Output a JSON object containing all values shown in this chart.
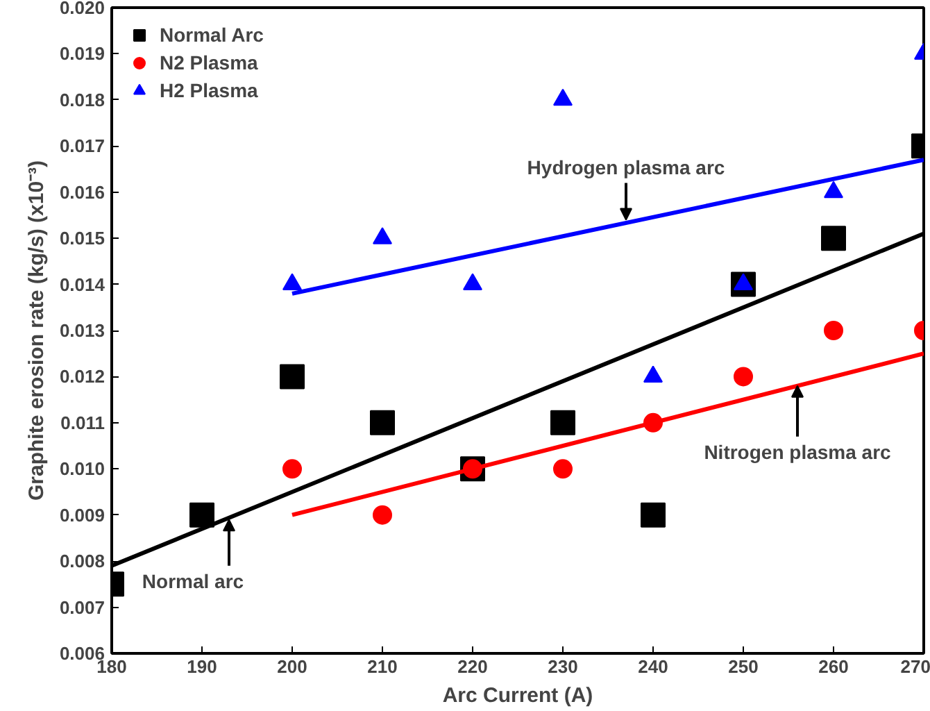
{
  "chart_data": {
    "type": "scatter",
    "xlabel": "Arc Current (A)",
    "ylabel": "Graphite erosion rate (kg/s) (x10⁻³)",
    "xlim": [
      180,
      270
    ],
    "xticks": [
      180,
      190,
      200,
      210,
      220,
      230,
      240,
      250,
      260,
      270
    ],
    "ylim": [
      0.006,
      0.02
    ],
    "yticks": [
      0.006,
      0.007,
      0.008,
      0.009,
      {
        "value": 0.01,
        "label": "0.010"
      },
      0.011,
      0.012,
      0.013,
      0.014,
      0.015,
      0.016,
      0.017,
      0.018,
      0.019,
      {
        "value": 0.02,
        "label": "0.020"
      }
    ],
    "grid": false,
    "legend": "top left",
    "series": [
      {
        "name": "Normal Arc",
        "color": "#000000",
        "marker": "square",
        "x": [
          180,
          190,
          200,
          210,
          220,
          230,
          240,
          250,
          260,
          270
        ],
        "values": [
          0.0075,
          0.009,
          0.012,
          0.011,
          0.01,
          0.011,
          0.009,
          0.014,
          0.015,
          0.017
        ]
      },
      {
        "name": "N2 Plasma",
        "color": "#ff0000",
        "marker": "circle",
        "x": [
          200,
          210,
          220,
          230,
          240,
          250,
          260,
          270
        ],
        "values": [
          0.01,
          0.009,
          0.01,
          0.01,
          0.011,
          0.012,
          0.013,
          0.013
        ]
      },
      {
        "name": "H2 Plasma",
        "color": "#0000ff",
        "marker": "triangle",
        "x": [
          200,
          210,
          220,
          230,
          240,
          250,
          260,
          270
        ],
        "values": [
          0.014,
          0.015,
          0.014,
          0.018,
          0.012,
          0.014,
          0.016,
          0.019
        ]
      },
      {
        "type": "line",
        "color": "#000000",
        "x": [
          180,
          270
        ],
        "values": [
          0.0079,
          0.0151
        ]
      },
      {
        "type": "line",
        "color": "#ff0000",
        "x": [
          200,
          270
        ],
        "values": [
          0.009,
          0.0125
        ]
      },
      {
        "type": "line",
        "color": "#0000ff",
        "x": [
          200,
          270
        ],
        "values": [
          0.0138,
          0.0167
        ]
      }
    ],
    "annotations": [
      {
        "text": "Hydrogen plasma arc",
        "x": 237,
        "y": 0.0154
      },
      {
        "text": "Nitrogen plasma arc",
        "x": 256,
        "y": 0.0118
      },
      {
        "text": "Normal arc",
        "x": 193,
        "y": 0.0089
      }
    ]
  }
}
